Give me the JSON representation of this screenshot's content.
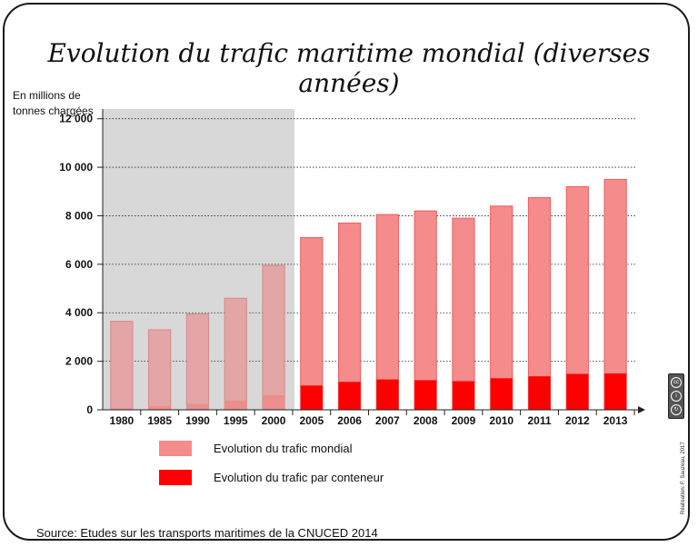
{
  "title": "Evolution du trafic maritime mondial (diverses années)",
  "y_axis_label": "En millions de tonnes chargées",
  "legend": [
    {
      "label": "Evolution du trafic mondial",
      "color": "#f68b8b"
    },
    {
      "label": "Evolution du trafic par conteneur",
      "color": "#ff0000"
    }
  ],
  "source": "Source: Etudes sur les transports maritimes de la CNUCED 2014",
  "credit": "Réalisation: F. Sauzeau, 2017",
  "license_icons": [
    "cc-icon",
    "by-icon",
    "sa-icon"
  ],
  "colors": {
    "total_bar": "#f68b8b",
    "total_bar_border": "#e46060",
    "container_bar": "#ff0000",
    "shaded_bg": "#d8d8d8",
    "shaded_total_bar": "#e3a5a5",
    "shaded_container_bar": "#ec8e8e"
  },
  "chart_data": {
    "type": "bar",
    "categories": [
      "1980",
      "1985",
      "1990",
      "1995",
      "2000",
      "2005",
      "2006",
      "2007",
      "2008",
      "2009",
      "2010",
      "2011",
      "2012",
      "2013"
    ],
    "series": [
      {
        "name": "Evolution du trafic mondial",
        "values": [
          3650,
          3300,
          3950,
          4600,
          5950,
          7100,
          7700,
          8050,
          8200,
          7900,
          8400,
          8750,
          9200,
          9500
        ]
      },
      {
        "name": "Evolution du trafic par conteneur",
        "values": [
          60,
          160,
          240,
          380,
          600,
          1000,
          1150,
          1250,
          1220,
          1180,
          1300,
          1380,
          1480,
          1500
        ]
      }
    ],
    "overlay": true,
    "shaded_categories": [
      "1980",
      "1985",
      "1990",
      "1995",
      "2000"
    ],
    "yticks": [
      0,
      2000,
      4000,
      6000,
      8000,
      10000,
      12000
    ],
    "ytick_labels": [
      "0",
      "2 000",
      "4 000",
      "6 000",
      "8 000",
      "10 000",
      "12 000"
    ],
    "ylim": [
      0,
      12400
    ],
    "grid": "horizontal dotted",
    "legend_position": "bottom"
  }
}
